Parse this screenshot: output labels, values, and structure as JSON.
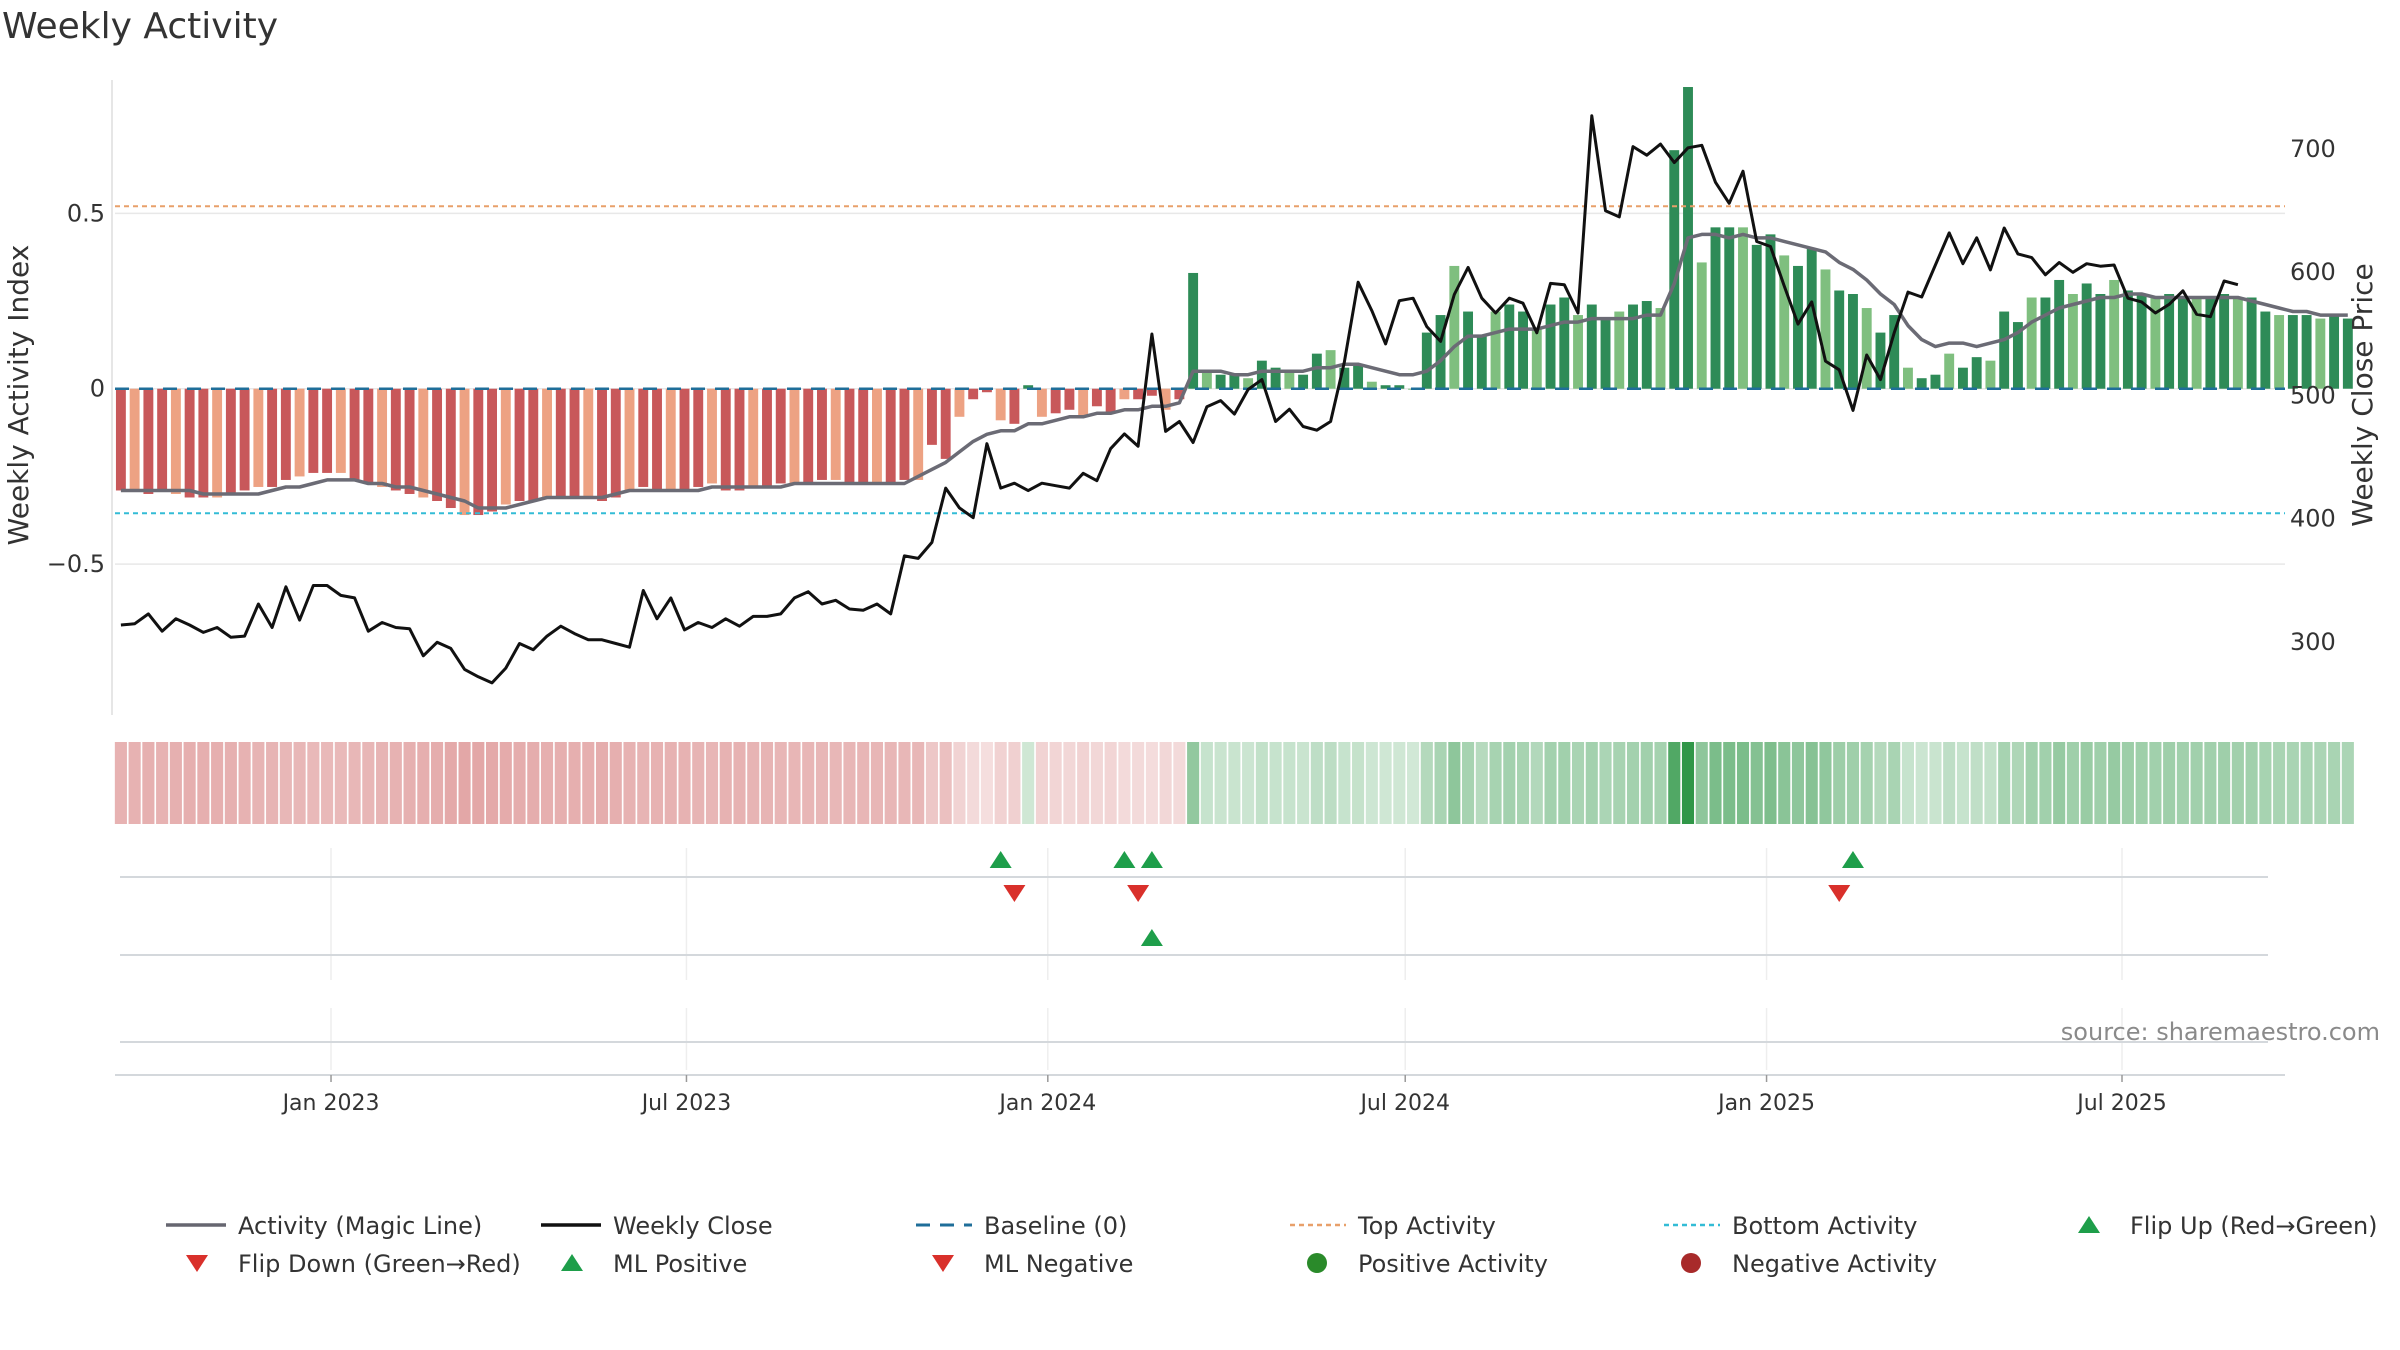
{
  "chart_data": {
    "type": "bar",
    "title": "Weekly Activity",
    "ylabel": "Weekly Activity Index",
    "y2label": "Weekly Close Price",
    "ylim": [
      -0.93,
      0.88
    ],
    "y2lim": [
      240,
      755
    ],
    "y_ticks": [
      0.5,
      0,
      -0.5
    ],
    "y_tick_labels": [
      "0.5",
      "0",
      "−0.5"
    ],
    "y2_ticks": [
      700,
      600,
      500,
      400,
      300
    ],
    "x_range": [
      "2022-09-13",
      "2025-09-22"
    ],
    "x_ticks": [
      {
        "date": "2023-01-01",
        "label": "Jan 2023"
      },
      {
        "date": "2023-07-01",
        "label": "Jul 2023"
      },
      {
        "date": "2024-01-01",
        "label": "Jan 2024"
      },
      {
        "date": "2024-07-01",
        "label": "Jul 2024"
      },
      {
        "date": "2025-01-01",
        "label": "Jan 2025"
      },
      {
        "date": "2025-07-01",
        "label": "Jul 2025"
      }
    ],
    "first_week": "2022-09-16",
    "reference_lines": {
      "baseline": 0,
      "top_activity": 0.52,
      "bottom_activity": -0.355
    },
    "activity": [
      -0.29,
      -0.29,
      -0.3,
      -0.29,
      -0.3,
      -0.31,
      -0.31,
      -0.31,
      -0.3,
      -0.29,
      -0.28,
      -0.28,
      -0.26,
      -0.25,
      -0.24,
      -0.24,
      -0.24,
      -0.26,
      -0.27,
      -0.28,
      -0.29,
      -0.3,
      -0.31,
      -0.32,
      -0.34,
      -0.36,
      -0.36,
      -0.35,
      -0.33,
      -0.32,
      -0.32,
      -0.31,
      -0.31,
      -0.31,
      -0.31,
      -0.32,
      -0.31,
      -0.29,
      -0.28,
      -0.29,
      -0.29,
      -0.29,
      -0.28,
      -0.27,
      -0.29,
      -0.29,
      -0.28,
      -0.28,
      -0.27,
      -0.27,
      -0.27,
      -0.26,
      -0.26,
      -0.27,
      -0.27,
      -0.27,
      -0.27,
      -0.26,
      -0.26,
      -0.16,
      -0.2,
      -0.08,
      -0.03,
      -0.01,
      -0.09,
      -0.1,
      0.01,
      -0.08,
      -0.07,
      -0.06,
      -0.08,
      -0.05,
      -0.07,
      -0.03,
      -0.03,
      -0.02,
      -0.06,
      -0.03,
      0.33,
      0.05,
      0.04,
      0.04,
      0.03,
      0.08,
      0.06,
      0.05,
      0.04,
      0.1,
      0.11,
      0.06,
      0.07,
      0.02,
      0.01,
      0.01,
      0.0,
      0.16,
      0.21,
      0.35,
      0.22,
      0.15,
      0.22,
      0.24,
      0.22,
      0.17,
      0.24,
      0.26,
      0.21,
      0.24,
      0.2,
      0.22,
      0.24,
      0.25,
      0.23,
      0.68,
      0.86,
      0.36,
      0.46,
      0.46,
      0.46,
      0.41,
      0.44,
      0.38,
      0.35,
      0.4,
      0.34,
      0.28,
      0.27,
      0.23,
      0.16,
      0.21,
      0.06,
      0.03,
      0.04,
      0.1,
      0.06,
      0.09,
      0.08,
      0.22,
      0.19,
      0.26,
      0.26,
      0.31,
      0.27,
      0.3,
      0.27,
      0.31,
      0.28,
      0.27,
      0.26,
      0.27,
      0.26,
      0.26,
      0.26,
      0.27,
      0.26,
      0.26,
      0.22,
      0.21,
      0.21,
      0.21,
      0.2,
      0.21,
      0.2
    ],
    "magic_line": [
      -0.29,
      -0.29,
      -0.29,
      -0.29,
      -0.29,
      -0.29,
      -0.3,
      -0.3,
      -0.3,
      -0.3,
      -0.3,
      -0.29,
      -0.28,
      -0.28,
      -0.27,
      -0.26,
      -0.26,
      -0.26,
      -0.27,
      -0.27,
      -0.28,
      -0.28,
      -0.29,
      -0.3,
      -0.31,
      -0.32,
      -0.34,
      -0.34,
      -0.34,
      -0.33,
      -0.32,
      -0.31,
      -0.31,
      -0.31,
      -0.31,
      -0.31,
      -0.3,
      -0.29,
      -0.29,
      -0.29,
      -0.29,
      -0.29,
      -0.29,
      -0.28,
      -0.28,
      -0.28,
      -0.28,
      -0.28,
      -0.28,
      -0.27,
      -0.27,
      -0.27,
      -0.27,
      -0.27,
      -0.27,
      -0.27,
      -0.27,
      -0.27,
      -0.25,
      -0.23,
      -0.21,
      -0.18,
      -0.15,
      -0.13,
      -0.12,
      -0.12,
      -0.1,
      -0.1,
      -0.09,
      -0.08,
      -0.08,
      -0.07,
      -0.07,
      -0.06,
      -0.06,
      -0.05,
      -0.05,
      -0.04,
      0.05,
      0.05,
      0.05,
      0.04,
      0.04,
      0.05,
      0.05,
      0.05,
      0.05,
      0.06,
      0.06,
      0.07,
      0.07,
      0.06,
      0.05,
      0.04,
      0.04,
      0.05,
      0.08,
      0.12,
      0.15,
      0.15,
      0.16,
      0.17,
      0.17,
      0.17,
      0.18,
      0.19,
      0.19,
      0.2,
      0.2,
      0.2,
      0.2,
      0.21,
      0.21,
      0.3,
      0.43,
      0.44,
      0.44,
      0.43,
      0.44,
      0.43,
      0.43,
      0.42,
      0.41,
      0.4,
      0.39,
      0.36,
      0.34,
      0.31,
      0.27,
      0.24,
      0.18,
      0.14,
      0.12,
      0.13,
      0.13,
      0.12,
      0.13,
      0.14,
      0.16,
      0.19,
      0.21,
      0.23,
      0.24,
      0.25,
      0.26,
      0.26,
      0.27,
      0.27,
      0.26,
      0.26,
      0.26,
      0.26,
      0.26,
      0.26,
      0.26,
      0.25,
      0.24,
      0.23,
      0.22,
      0.22,
      0.21,
      0.21,
      0.21
    ],
    "weekly_close": [
      313,
      314,
      322,
      308,
      318,
      313,
      307,
      311,
      303,
      304,
      330,
      311,
      344,
      317,
      345,
      345,
      337,
      335,
      308,
      315,
      311,
      310,
      288,
      299,
      294,
      277,
      271,
      266,
      278,
      298,
      293,
      304,
      312,
      306,
      301,
      301,
      298,
      295,
      341,
      318,
      335,
      309,
      315,
      311,
      318,
      312,
      320,
      320,
      322,
      335,
      340,
      330,
      333,
      326,
      325,
      330,
      322,
      369,
      367,
      380,
      424,
      408,
      400,
      460,
      424,
      428,
      422,
      428,
      426,
      424,
      436,
      430,
      456,
      468,
      458,
      549,
      470,
      478,
      461,
      490,
      495,
      484,
      504,
      512,
      478,
      488,
      474,
      471,
      478,
      526,
      591,
      568,
      541,
      576,
      578,
      555,
      543,
      581,
      603,
      578,
      566,
      578,
      574,
      550,
      590,
      589,
      566,
      726,
      649,
      644,
      701,
      694,
      703,
      688,
      700,
      702,
      672,
      655,
      681,
      624,
      620,
      588,
      557,
      575,
      527,
      520,
      487,
      532,
      512,
      550,
      583,
      579,
      605,
      631,
      606,
      627,
      601,
      635,
      614,
      611,
      597,
      607,
      599,
      606,
      604,
      605,
      578,
      575,
      566,
      573,
      584,
      565,
      563,
      592,
      589
    ],
    "activity_categories": [
      "Negative Activity",
      "Negative Activity",
      "Positive Activity"
    ],
    "ticker": "sharemaestro.com",
    "flip_up_weeks": [
      64,
      73,
      75,
      126
    ],
    "flip_down_weeks": [
      65,
      74,
      125
    ],
    "ml_positive_weeks": [
      75
    ],
    "ml_negative_weeks": []
  },
  "legend": [
    {
      "label": "Activity (Magic Line)",
      "kind": "line",
      "color": "#666670"
    },
    {
      "label": "Weekly Close",
      "kind": "line",
      "color": "#111111"
    },
    {
      "label": "Baseline (0)",
      "kind": "dashed",
      "color": "#1f6e99"
    },
    {
      "label": "Top Activity",
      "kind": "dotted",
      "color": "#e8a06a"
    },
    {
      "label": "Bottom Activity",
      "kind": "dotted",
      "color": "#33bcd6"
    },
    {
      "label": "Flip Up (Red→Green)",
      "kind": "tri-up",
      "color": "#1e9e4a"
    },
    {
      "label": "Flip Down (Green→Red)",
      "kind": "tri-down",
      "color": "#d9302b"
    },
    {
      "label": "ML Positive",
      "kind": "tri-up",
      "color": "#1e9e4a"
    },
    {
      "label": "ML Negative",
      "kind": "tri-down",
      "color": "#d9302b"
    },
    {
      "label": "Positive Activity",
      "kind": "dot",
      "color": "#2a8a2a"
    },
    {
      "label": "Negative Activity",
      "kind": "dot",
      "color": "#a82a2a"
    }
  ],
  "source_text": "source: sharemaestro.com",
  "colors": {
    "neg_dark": "#c8585a",
    "neg_light": "#eda283",
    "pos_dark": "#2e8b57",
    "pos_light": "#7fbf7f",
    "close_line": "#111111",
    "magic_line": "#6b6b75",
    "baseline": "#1f6e99",
    "top": "#e8a06a",
    "bottom": "#33bcd6",
    "up_marker": "#1e9e4a",
    "down_marker": "#d9302b"
  }
}
